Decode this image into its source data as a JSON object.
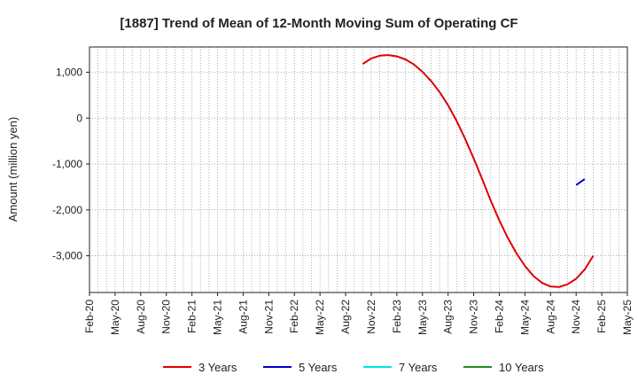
{
  "chart_data": {
    "type": "line",
    "title": "[1887]  Trend of Mean of 12-Month Moving Sum of Operating CF",
    "xlabel": "",
    "ylabel": "Amount (million yen)",
    "ylim": [
      -3800,
      1550
    ],
    "yticks": [
      1000,
      0,
      -1000,
      -2000,
      -3000
    ],
    "ytick_labels": [
      "1,000",
      "0",
      "-1,000",
      "-2,000",
      "-3,000"
    ],
    "x_start": "Feb-20",
    "x_months_total": 63,
    "xticks": [
      "Feb-20",
      "May-20",
      "Aug-20",
      "Nov-20",
      "Feb-21",
      "May-21",
      "Aug-21",
      "Nov-21",
      "Feb-22",
      "May-22",
      "Aug-22",
      "Nov-22",
      "Feb-23",
      "May-23",
      "Aug-23",
      "Nov-23",
      "Feb-24",
      "May-24",
      "Aug-24",
      "Nov-24",
      "Feb-25",
      "May-25"
    ],
    "grid": true,
    "legend_position": "bottom",
    "series": [
      {
        "name": "3 Years",
        "color": "#dd0000",
        "start_index": 32,
        "values": [
          1180,
          1300,
          1360,
          1375,
          1345,
          1280,
          1170,
          1010,
          810,
          570,
          280,
          -60,
          -450,
          -880,
          -1330,
          -1800,
          -2230,
          -2610,
          -2940,
          -3220,
          -3440,
          -3590,
          -3670,
          -3680,
          -3620,
          -3500,
          -3300,
          -3000
        ]
      },
      {
        "name": "5 Years",
        "color": "#0000cc",
        "start_index": 57,
        "values": [
          -1460,
          -1330
        ]
      },
      {
        "name": "7 Years",
        "color": "#00e5ee",
        "start_index": null,
        "values": []
      },
      {
        "name": "10 Years",
        "color": "#228b22",
        "start_index": null,
        "values": []
      }
    ]
  }
}
